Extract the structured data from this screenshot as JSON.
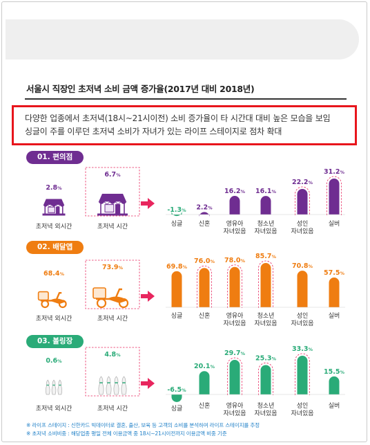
{
  "title": "서울시 직장인 초저녁 소비 금액 증가율(2017년 대비 2018년)",
  "summary": [
    "다양한 업종에서 초저녁(18시~21시이전) 소비 증가율이 타 시간대 대비 높은 모습을 보임",
    "싱글이 주를 이루던 초저녁 소비가 자녀가 있는 라이프 스테이지로 점차 확대"
  ],
  "footnotes": [
    "※ 라이프 스테이지 : 신한카드 빅데이터로 결혼, 출산, 보육 등 고객의 소비를 분석하여 라이프 스테이지를 추정",
    "※ 초저녁 소비비중 : 해당업종 평일 전체 이용금액 중 18시~21시이전까지 이용금액 비중 기준"
  ],
  "colors": {
    "store": "#6f2d91",
    "delivery": "#ef7d11",
    "bowling": "#2aab78",
    "arrow": "#e8265e",
    "negative": "#2aab78"
  },
  "chart_data": [
    {
      "type": "bar",
      "label": "01. 편의점",
      "unit": "%",
      "compare": {
        "categories": [
          "초저녁 외시간",
          "초저녁 시간"
        ],
        "values": [
          2.8,
          6.7
        ],
        "icon": "store-icon"
      },
      "categories": [
        "싱글",
        "신혼",
        "영유아 자녀있음",
        "청소년 자녀있음",
        "성인 자녀있음",
        "실버"
      ],
      "category_lines": [
        [
          "싱글"
        ],
        [
          "신혼"
        ],
        [
          "영유아",
          "자녀있음"
        ],
        [
          "청소년",
          "자녀있음"
        ],
        [
          "성인",
          "자녀있음"
        ],
        [
          "실버"
        ]
      ],
      "values": [
        -1.3,
        2.2,
        16.2,
        16.1,
        22.2,
        31.2
      ],
      "highlighted": [
        "성인 자녀있음",
        "실버"
      ]
    },
    {
      "type": "bar",
      "label": "02. 배달앱",
      "unit": "%",
      "compare": {
        "categories": [
          "초저녁 외시간",
          "초저녁 시간"
        ],
        "values": [
          68.4,
          73.9
        ],
        "icon": "scooter-icon"
      },
      "categories": [
        "싱글",
        "신혼",
        "영유아 자녀있음",
        "청소년 자녀있음",
        "성인 자녀있음",
        "실버"
      ],
      "category_lines": [
        [
          "싱글"
        ],
        [
          "신혼"
        ],
        [
          "영유아",
          "자녀있음"
        ],
        [
          "청소년",
          "자녀있음"
        ],
        [
          "성인",
          "자녀있음"
        ],
        [
          "실버"
        ]
      ],
      "values": [
        69.8,
        76.0,
        78.0,
        85.7,
        70.8,
        57.5
      ],
      "highlighted": [
        "신혼",
        "영유아 자녀있음",
        "청소년 자녀있음"
      ]
    },
    {
      "type": "bar",
      "label": "03. 볼링장",
      "unit": "%",
      "compare": {
        "categories": [
          "초저녁 외시간",
          "초저녁 시간"
        ],
        "values": [
          0.6,
          4.8
        ],
        "icon": "bowling-pins-icon"
      },
      "categories": [
        "싱글",
        "신혼",
        "영유아 자녀있음",
        "청소년 자녀있음",
        "성인 자녀있음",
        "실버"
      ],
      "category_lines": [
        [
          "싱글"
        ],
        [
          "신혼"
        ],
        [
          "영유아",
          "자녀있음"
        ],
        [
          "청소년",
          "자녀있음"
        ],
        [
          "성인",
          "자녀있음"
        ],
        [
          "실버"
        ]
      ],
      "values": [
        -6.5,
        20.1,
        29.7,
        25.3,
        33.3,
        15.5
      ],
      "highlighted": [
        "영유아 자녀있음",
        "청소년 자녀있음",
        "성인 자녀있음"
      ]
    }
  ]
}
